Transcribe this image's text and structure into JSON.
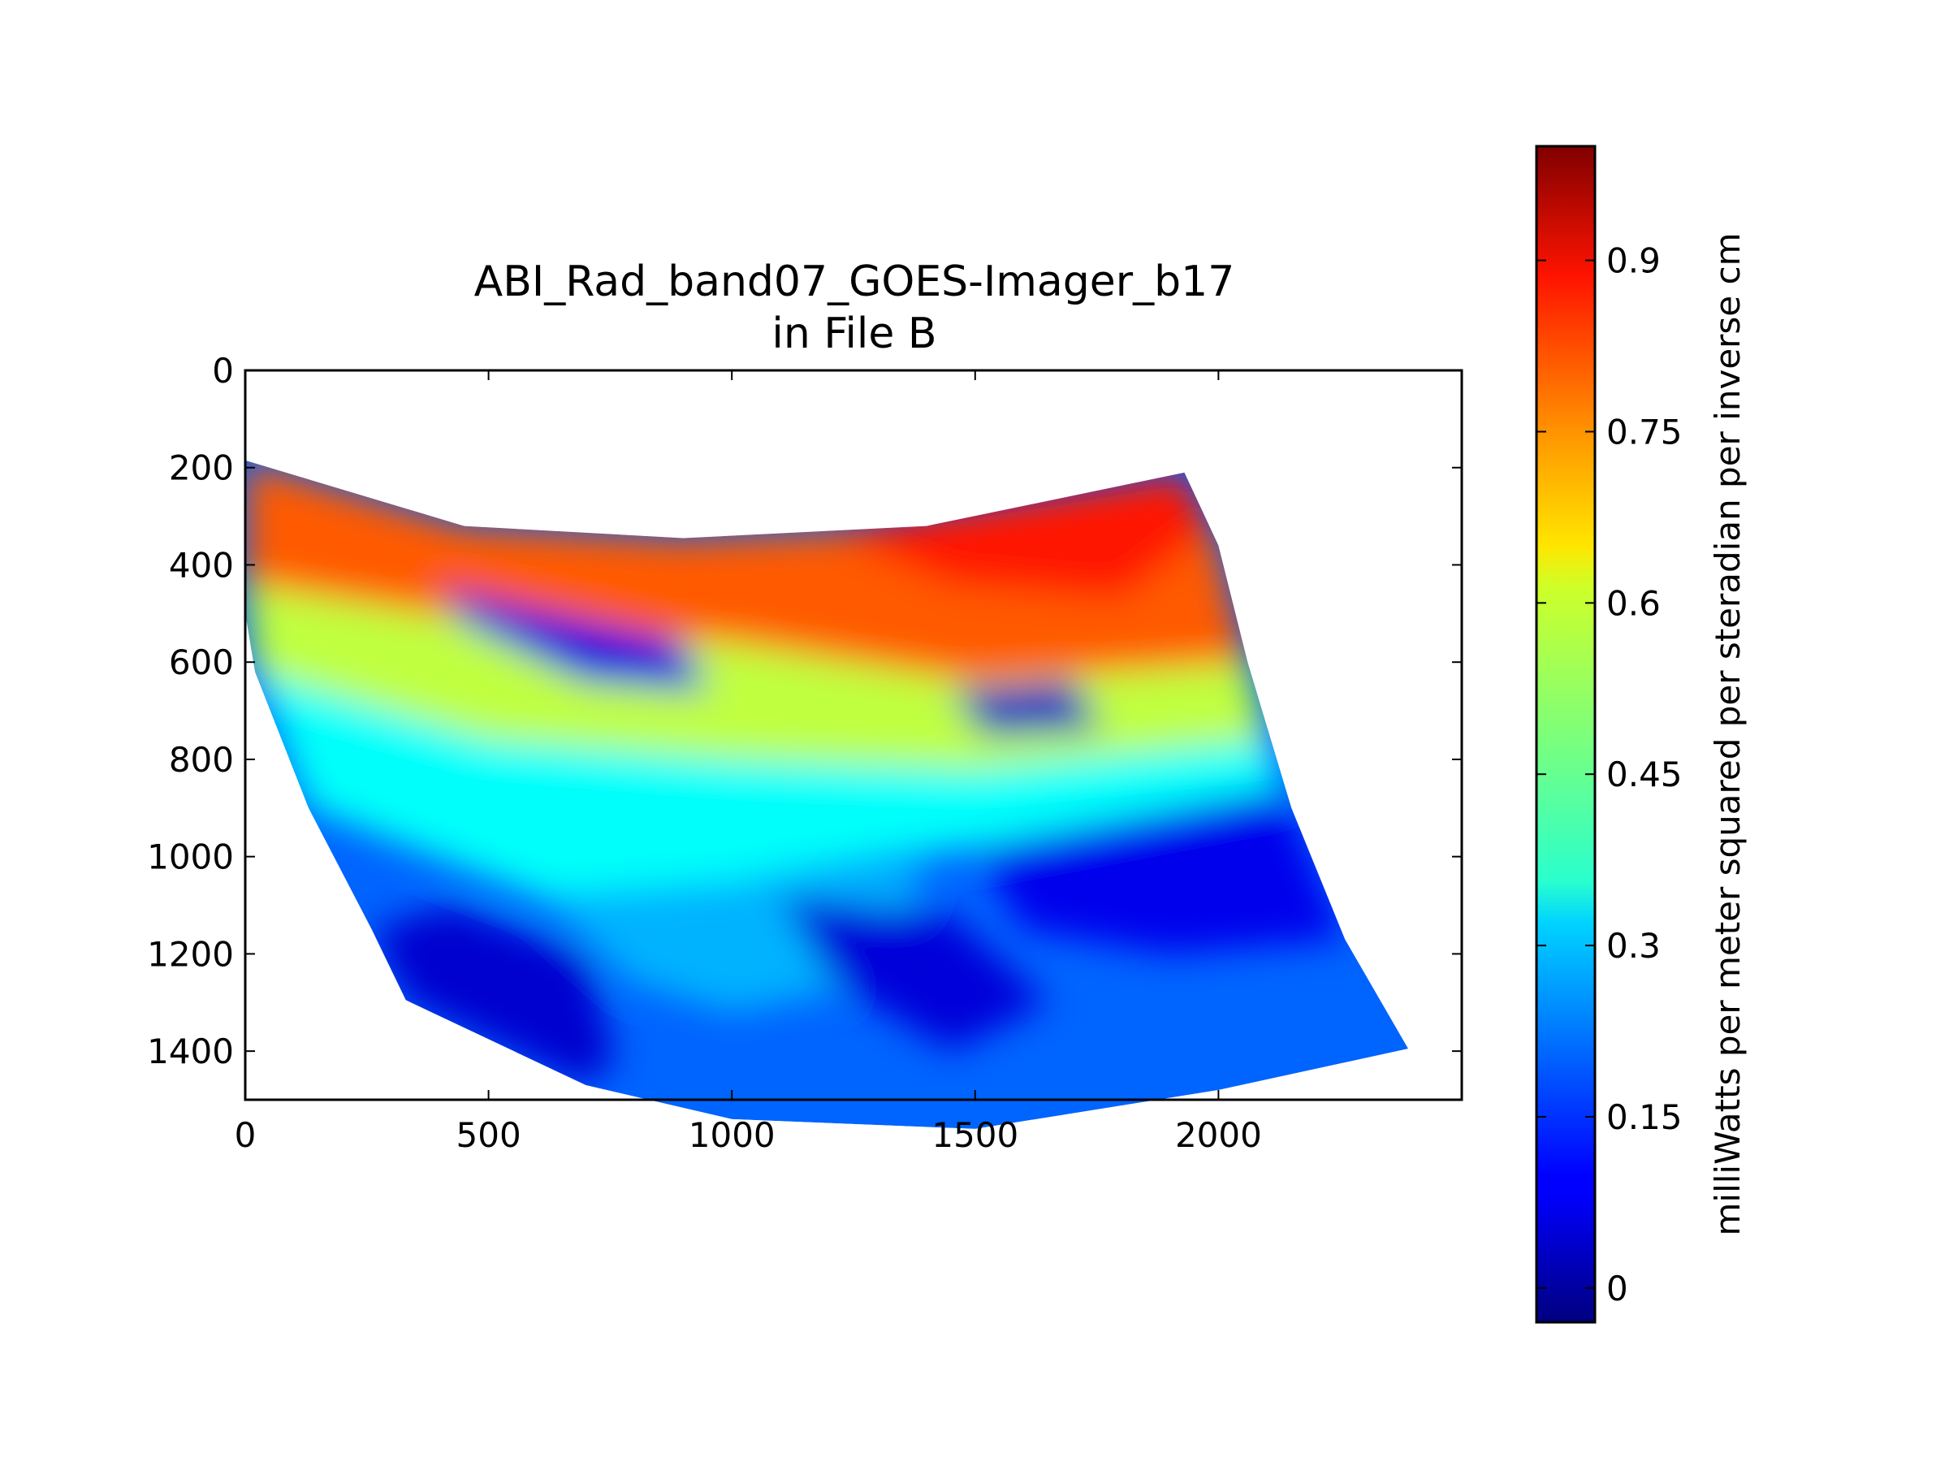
{
  "chart_data": {
    "type": "heatmap",
    "title": "ABI_Rad_band07_GOES-Imager_b17",
    "subtitle": "in File B",
    "xlabel": "",
    "ylabel": "",
    "xlim": [
      0,
      2500
    ],
    "ylim": [
      1500,
      0
    ],
    "y_inverted": true,
    "grid": false,
    "colormap": "jet",
    "x_ticks": [
      "0",
      "500",
      "1000",
      "1500",
      "2000"
    ],
    "x_tick_values": [
      0,
      500,
      1000,
      1500,
      2000
    ],
    "y_ticks": [
      "0",
      "200",
      "400",
      "600",
      "800",
      "1000",
      "1200",
      "1400"
    ],
    "y_tick_values": [
      0,
      200,
      400,
      600,
      800,
      1000,
      1200,
      1400
    ],
    "data_outline": [
      [
        0,
        185
      ],
      [
        450,
        320
      ],
      [
        900,
        345
      ],
      [
        1400,
        320
      ],
      [
        1930,
        210
      ],
      [
        2000,
        360
      ],
      [
        2060,
        600
      ],
      [
        2150,
        900
      ],
      [
        2260,
        1170
      ],
      [
        2390,
        1395
      ],
      [
        2000,
        1480
      ],
      [
        1500,
        1560
      ],
      [
        1000,
        1540
      ],
      [
        700,
        1470
      ],
      [
        330,
        1295
      ],
      [
        260,
        1150
      ],
      [
        130,
        900
      ],
      [
        20,
        620
      ],
      [
        0,
        500
      ]
    ],
    "regions": [
      {
        "value": 0.78,
        "points": [
          [
            0,
            185
          ],
          [
            450,
            320
          ],
          [
            900,
            345
          ],
          [
            1400,
            320
          ],
          [
            1930,
            210
          ],
          [
            2000,
            360
          ],
          [
            2060,
            600
          ],
          [
            1500,
            640
          ],
          [
            1000,
            560
          ],
          [
            500,
            520
          ],
          [
            0,
            440
          ]
        ]
      },
      {
        "value": 0.85,
        "points": [
          [
            1200,
            330
          ],
          [
            1930,
            210
          ],
          [
            1980,
            330
          ],
          [
            1800,
            470
          ],
          [
            1450,
            440
          ]
        ]
      },
      {
        "value": 0.55,
        "points": [
          [
            0,
            440
          ],
          [
            500,
            520
          ],
          [
            1000,
            560
          ],
          [
            1500,
            640
          ],
          [
            2060,
            600
          ],
          [
            2100,
            760
          ],
          [
            1500,
            820
          ],
          [
            1000,
            800
          ],
          [
            500,
            760
          ],
          [
            20,
            620
          ]
        ]
      },
      {
        "value": 0.36,
        "points": [
          [
            20,
            620
          ],
          [
            500,
            760
          ],
          [
            1000,
            800
          ],
          [
            1500,
            820
          ],
          [
            2100,
            760
          ],
          [
            2130,
            860
          ],
          [
            1500,
            980
          ],
          [
            1000,
            1050
          ],
          [
            600,
            1080
          ],
          [
            130,
            900
          ]
        ]
      },
      {
        "value": 0.28,
        "points": [
          [
            600,
            1080
          ],
          [
            1000,
            1050
          ],
          [
            1400,
            1020
          ],
          [
            1300,
            1260
          ],
          [
            1000,
            1320
          ],
          [
            800,
            1260
          ]
        ]
      },
      {
        "value": 0.08,
        "points": [
          [
            1500,
            980
          ],
          [
            2130,
            860
          ],
          [
            2260,
            1170
          ],
          [
            1900,
            1200
          ],
          [
            1600,
            1150
          ]
        ]
      },
      {
        "value": 0.05,
        "points": [
          [
            330,
            1295
          ],
          [
            260,
            1150
          ],
          [
            420,
            1100
          ],
          [
            700,
            1200
          ],
          [
            760,
            1420
          ],
          [
            700,
            1470
          ]
        ]
      },
      {
        "value": 0.07,
        "points": [
          [
            400,
            450
          ],
          [
            900,
            560
          ],
          [
            950,
            660
          ],
          [
            700,
            640
          ],
          [
            450,
            520
          ]
        ]
      },
      {
        "value": 0.04,
        "points": [
          [
            1450,
            660
          ],
          [
            1700,
            640
          ],
          [
            1760,
            740
          ],
          [
            1520,
            750
          ]
        ]
      },
      {
        "value": 0.06,
        "points": [
          [
            1100,
            1080
          ],
          [
            1450,
            1120
          ],
          [
            1650,
            1300
          ],
          [
            1450,
            1400
          ],
          [
            1200,
            1250
          ]
        ]
      }
    ],
    "colorbar": {
      "label": "milliWatts per meter squared per steradian per inverse cm",
      "vmin": -0.03,
      "vmax": 1.0,
      "tick_values": [
        0,
        0.15,
        0.3,
        0.45,
        0.6,
        0.75,
        0.9
      ],
      "tick_labels": [
        "0",
        "0.15",
        "0.3",
        "0.45",
        "0.6",
        "0.75",
        "0.9"
      ]
    }
  }
}
